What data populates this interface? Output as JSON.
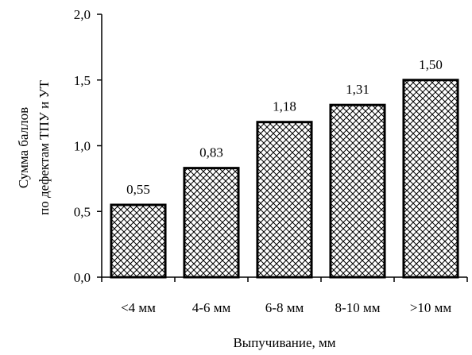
{
  "chart_data": {
    "type": "bar",
    "categories": [
      "<4 мм",
      "4-6 мм",
      "6-8 мм",
      "8-10 мм",
      ">10 мм"
    ],
    "values": [
      0.55,
      0.83,
      1.18,
      1.31,
      1.5
    ],
    "value_labels": [
      "0,55",
      "0,83",
      "1,18",
      "1,31",
      "1,50"
    ],
    "title": "",
    "xlabel": "Выпучивание, мм",
    "ylabel_lines": [
      "Сумма баллов",
      "по дефектам ТПУ и УТ"
    ],
    "ylim": [
      0,
      2.0
    ],
    "yticks": [
      0,
      0.5,
      1.0,
      1.5,
      2.0
    ],
    "ytick_labels": [
      "0,0",
      "0,5",
      "1,0",
      "1,5",
      "2,0"
    ],
    "grid": false,
    "legend": "none",
    "bar_fill": "crosshatch",
    "bar_stroke_color": "#000000"
  }
}
